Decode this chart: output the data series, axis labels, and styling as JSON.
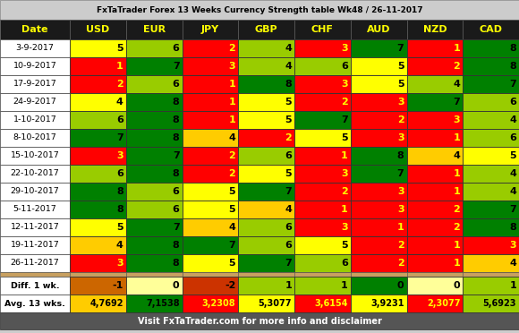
{
  "title": "FxTaTrader Forex 13 Weeks Currency Strength table Wk48 / 26-11-2017",
  "footer": "Visit FxTaTrader.com for more info and disclaimer",
  "columns": [
    "Date",
    "USD",
    "EUR",
    "JPY",
    "GBP",
    "CHF",
    "AUD",
    "NZD",
    "CAD"
  ],
  "dates": [
    "3-9-2017",
    "10-9-2017",
    "17-9-2017",
    "24-9-2017",
    "1-10-2017",
    "8-10-2017",
    "15-10-2017",
    "22-10-2017",
    "29-10-2017",
    "5-11-2017",
    "12-11-2017",
    "19-11-2017",
    "26-11-2017"
  ],
  "values": [
    [
      5,
      6,
      2,
      4,
      3,
      7,
      1,
      8
    ],
    [
      1,
      7,
      3,
      4,
      6,
      5,
      2,
      8
    ],
    [
      2,
      6,
      1,
      8,
      3,
      5,
      4,
      7
    ],
    [
      4,
      8,
      1,
      5,
      2,
      3,
      7,
      6
    ],
    [
      6,
      8,
      1,
      5,
      7,
      2,
      3,
      4
    ],
    [
      7,
      8,
      4,
      2,
      5,
      3,
      1,
      6
    ],
    [
      3,
      7,
      2,
      6,
      1,
      8,
      4,
      5
    ],
    [
      6,
      8,
      2,
      5,
      3,
      7,
      1,
      4
    ],
    [
      8,
      6,
      5,
      7,
      2,
      3,
      1,
      4
    ],
    [
      8,
      6,
      5,
      4,
      1,
      3,
      2,
      7
    ],
    [
      5,
      7,
      4,
      6,
      3,
      1,
      2,
      8
    ],
    [
      4,
      8,
      7,
      6,
      5,
      2,
      1,
      3
    ],
    [
      3,
      8,
      5,
      7,
      6,
      2,
      1,
      4
    ]
  ],
  "colors": [
    [
      "#ffff00",
      "#99cc00",
      "#ff0000",
      "#99cc00",
      "#ff0000",
      "#008000",
      "#ff0000",
      "#008000"
    ],
    [
      "#ff0000",
      "#008000",
      "#ff0000",
      "#99cc00",
      "#99cc00",
      "#ffff00",
      "#ff0000",
      "#008000"
    ],
    [
      "#ff0000",
      "#99cc00",
      "#ff0000",
      "#008000",
      "#ff0000",
      "#ffff00",
      "#99cc00",
      "#008000"
    ],
    [
      "#ffff00",
      "#008000",
      "#ff0000",
      "#ffff00",
      "#ff0000",
      "#ff0000",
      "#008000",
      "#99cc00"
    ],
    [
      "#99cc00",
      "#008000",
      "#ff0000",
      "#ffff00",
      "#008000",
      "#ff0000",
      "#ff0000",
      "#99cc00"
    ],
    [
      "#008000",
      "#008000",
      "#ffcc00",
      "#ff0000",
      "#ffff00",
      "#ff0000",
      "#ff0000",
      "#99cc00"
    ],
    [
      "#ff0000",
      "#008000",
      "#ff0000",
      "#99cc00",
      "#ff0000",
      "#008000",
      "#ffcc00",
      "#ffff00"
    ],
    [
      "#99cc00",
      "#008000",
      "#ff0000",
      "#ffff00",
      "#ff0000",
      "#008000",
      "#ff0000",
      "#99cc00"
    ],
    [
      "#008000",
      "#99cc00",
      "#ffff00",
      "#008000",
      "#ff0000",
      "#ff0000",
      "#ff0000",
      "#99cc00"
    ],
    [
      "#008000",
      "#99cc00",
      "#ffff00",
      "#ffcc00",
      "#ff0000",
      "#ff0000",
      "#ff0000",
      "#008000"
    ],
    [
      "#ffff00",
      "#008000",
      "#ffcc00",
      "#99cc00",
      "#ff0000",
      "#ff0000",
      "#ff0000",
      "#008000"
    ],
    [
      "#ffcc00",
      "#008000",
      "#008000",
      "#99cc00",
      "#ffff00",
      "#ff0000",
      "#ff0000",
      "#ff0000"
    ],
    [
      "#ff0000",
      "#008000",
      "#ffff00",
      "#008000",
      "#99cc00",
      "#ff0000",
      "#ff0000",
      "#ffcc00"
    ]
  ],
  "text_colors": [
    [
      "#000000",
      "#000000",
      "#ffff00",
      "#000000",
      "#ffff00",
      "#000000",
      "#ffff00",
      "#000000"
    ],
    [
      "#ffff00",
      "#000000",
      "#ffff00",
      "#000000",
      "#000000",
      "#000000",
      "#ffff00",
      "#000000"
    ],
    [
      "#ffff00",
      "#000000",
      "#ffff00",
      "#000000",
      "#ffff00",
      "#000000",
      "#000000",
      "#000000"
    ],
    [
      "#000000",
      "#000000",
      "#ffff00",
      "#000000",
      "#ffff00",
      "#ffff00",
      "#000000",
      "#000000"
    ],
    [
      "#000000",
      "#000000",
      "#ffff00",
      "#000000",
      "#000000",
      "#ffff00",
      "#ffff00",
      "#000000"
    ],
    [
      "#000000",
      "#000000",
      "#000000",
      "#ffff00",
      "#000000",
      "#ffff00",
      "#ffff00",
      "#000000"
    ],
    [
      "#ffff00",
      "#000000",
      "#ffff00",
      "#000000",
      "#ffff00",
      "#000000",
      "#000000",
      "#000000"
    ],
    [
      "#000000",
      "#000000",
      "#ffff00",
      "#000000",
      "#ffff00",
      "#000000",
      "#ffff00",
      "#000000"
    ],
    [
      "#000000",
      "#000000",
      "#000000",
      "#000000",
      "#ffff00",
      "#ffff00",
      "#ffff00",
      "#000000"
    ],
    [
      "#000000",
      "#000000",
      "#000000",
      "#000000",
      "#ffff00",
      "#ffff00",
      "#ffff00",
      "#000000"
    ],
    [
      "#000000",
      "#000000",
      "#000000",
      "#000000",
      "#ffff00",
      "#ffff00",
      "#ffff00",
      "#000000"
    ],
    [
      "#000000",
      "#000000",
      "#000000",
      "#000000",
      "#000000",
      "#ffff00",
      "#ffff00",
      "#ffff00"
    ],
    [
      "#ffff00",
      "#000000",
      "#000000",
      "#000000",
      "#000000",
      "#ffff00",
      "#ffff00",
      "#000000"
    ]
  ],
  "diff_values": [
    -1,
    0,
    -2,
    1,
    1,
    0,
    0,
    1
  ],
  "diff_colors": [
    "#cc6600",
    "#ffff99",
    "#cc3300",
    "#99cc00",
    "#99cc00",
    "#008000",
    "#ffff99",
    "#99cc00"
  ],
  "diff_text_colors": [
    "#000000",
    "#000000",
    "#000000",
    "#000000",
    "#000000",
    "#000000",
    "#000000",
    "#000000"
  ],
  "avg_values": [
    "4,7692",
    "7,1538",
    "3,2308",
    "5,3077",
    "3,6154",
    "3,9231",
    "2,3077",
    "5,6923"
  ],
  "avg_colors": [
    "#ffcc00",
    "#008000",
    "#ff0000",
    "#ffff00",
    "#ff0000",
    "#ffff00",
    "#ff0000",
    "#99cc00"
  ],
  "avg_text_colors": [
    "#000000",
    "#000000",
    "#ffff00",
    "#000000",
    "#ffff00",
    "#000000",
    "#ffff00",
    "#000000"
  ],
  "title_bg": "#cccccc",
  "title_text": "#000000",
  "col_header_bg": "#1a1a1a",
  "col_header_text": "#ffff00",
  "date_col_bg": "#ffffff",
  "date_text_color": "#000000",
  "sep_color": "#c8a060",
  "diff_label_bg": "#ffffff",
  "avg_label_bg": "#ffffff",
  "footer_bg": "#555555",
  "footer_text": "#ffffff"
}
